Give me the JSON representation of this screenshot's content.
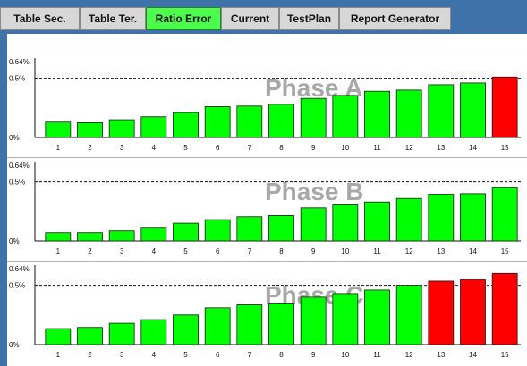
{
  "tabs": [
    {
      "label": "Table Sec.",
      "active": false
    },
    {
      "label": "Table Ter.",
      "active": false
    },
    {
      "label": "Ratio Error",
      "active": true
    },
    {
      "label": "Current",
      "active": false
    },
    {
      "label": "TestPlan",
      "active": false
    },
    {
      "label": "Report Generator",
      "active": false
    }
  ],
  "colors": {
    "ok_bar": "#00ff00",
    "error_bar": "#ff0000",
    "active_tab": "#4cff4c",
    "background": "#3f72a8"
  },
  "chart_data": [
    {
      "type": "bar",
      "title": "Phase A",
      "categories": [
        "1",
        "2",
        "3",
        "4",
        "5",
        "6",
        "7",
        "8",
        "9",
        "10",
        "11",
        "12",
        "13",
        "14",
        "15"
      ],
      "values": [
        0.13,
        0.125,
        0.15,
        0.175,
        0.21,
        0.26,
        0.265,
        0.28,
        0.33,
        0.355,
        0.39,
        0.4,
        0.445,
        0.46,
        0.51
      ],
      "status": [
        "ok",
        "ok",
        "ok",
        "ok",
        "ok",
        "ok",
        "ok",
        "ok",
        "ok",
        "ok",
        "ok",
        "ok",
        "ok",
        "ok",
        "error"
      ],
      "ylim": [
        0,
        0.64
      ],
      "yticks": [
        "0%",
        "0.5%",
        "0.64%"
      ],
      "reference_line": 0.5
    },
    {
      "type": "bar",
      "title": "Phase B",
      "categories": [
        "1",
        "2",
        "3",
        "4",
        "5",
        "6",
        "7",
        "8",
        "9",
        "10",
        "11",
        "12",
        "13",
        "14",
        "15"
      ],
      "values": [
        0.07,
        0.07,
        0.085,
        0.115,
        0.15,
        0.18,
        0.205,
        0.215,
        0.28,
        0.305,
        0.33,
        0.36,
        0.395,
        0.4,
        0.45
      ],
      "status": [
        "ok",
        "ok",
        "ok",
        "ok",
        "ok",
        "ok",
        "ok",
        "ok",
        "ok",
        "ok",
        "ok",
        "ok",
        "ok",
        "ok",
        "ok"
      ],
      "ylim": [
        0,
        0.64
      ],
      "yticks": [
        "0%",
        "0.5%",
        "0.64%"
      ],
      "reference_line": 0.5
    },
    {
      "type": "bar",
      "title": "Phase C",
      "categories": [
        "1",
        "2",
        "3",
        "4",
        "5",
        "6",
        "7",
        "8",
        "9",
        "10",
        "11",
        "12",
        "13",
        "14",
        "15"
      ],
      "values": [
        0.135,
        0.145,
        0.18,
        0.21,
        0.25,
        0.31,
        0.335,
        0.35,
        0.4,
        0.43,
        0.46,
        0.5,
        0.535,
        0.55,
        0.6
      ],
      "status": [
        "ok",
        "ok",
        "ok",
        "ok",
        "ok",
        "ok",
        "ok",
        "ok",
        "ok",
        "ok",
        "ok",
        "ok",
        "error",
        "error",
        "error"
      ],
      "ylim": [
        0,
        0.64
      ],
      "yticks": [
        "0%",
        "0.5%",
        "0.64%"
      ],
      "reference_line": 0.5
    }
  ]
}
